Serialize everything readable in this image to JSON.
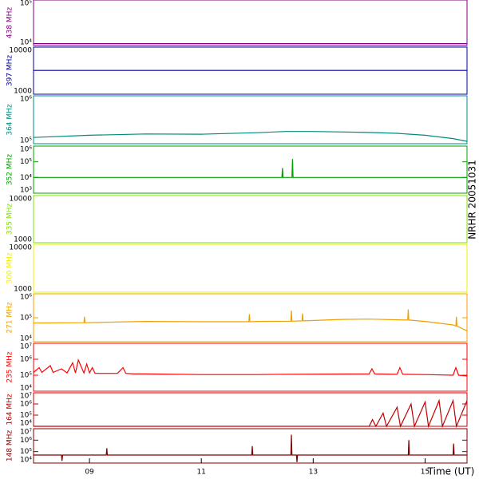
{
  "side_label": "NRHR 20051031",
  "chart_data": [
    {
      "type": "line",
      "ylabel": "438 MHz",
      "color": "#800080",
      "log_y": true,
      "ylim": [
        10000,
        100000
      ],
      "yticks": [
        {
          "value": 10000,
          "label": "10⁴"
        },
        {
          "value": 100000,
          "label": "10⁵"
        }
      ],
      "x": [
        8,
        15.75
      ],
      "values": [
        11000,
        11000
      ]
    },
    {
      "type": "line",
      "ylabel": "397 MHz",
      "color": "#0000a0",
      "log_y": true,
      "ylim": [
        1000,
        10000
      ],
      "yticks": [
        1000,
        10000
      ],
      "x": [
        8,
        15.75
      ],
      "values": [
        3200,
        3200
      ]
    },
    {
      "type": "line",
      "ylabel": "364 MHz",
      "color": "#008b80",
      "log_y": true,
      "ylim": [
        100000,
        1000000
      ],
      "yticks": [
        {
          "value": 100000,
          "label": "10⁵"
        },
        {
          "value": 1000000,
          "label": "10⁶"
        }
      ],
      "x": [
        8,
        9,
        10,
        11,
        12,
        12.5,
        13,
        14,
        14.5,
        15,
        15.5,
        15.75
      ],
      "values": [
        135000,
        150000,
        160000,
        158000,
        170000,
        180000,
        180000,
        172000,
        165000,
        150000,
        128000,
        112000
      ]
    },
    {
      "type": "line",
      "ylabel": "352 MHz",
      "color": "#00a000",
      "log_y": true,
      "ylim": [
        1000,
        1000000
      ],
      "yticks": [
        {
          "value": 1000,
          "label": "10³"
        },
        {
          "value": 10000,
          "label": "10⁴"
        },
        {
          "value": 100000,
          "label": "10⁵"
        },
        {
          "value": 1000000,
          "label": "10⁶"
        }
      ],
      "x": [
        8,
        12.44,
        12.45,
        12.46,
        12.62,
        12.63,
        12.64,
        15.75
      ],
      "values": [
        10000,
        10000,
        40000,
        10000,
        10000,
        150000,
        10000,
        10000
      ]
    },
    {
      "type": "line",
      "ylabel": "335 MHz",
      "color": "#80e000",
      "log_y": true,
      "ylim": [
        1000,
        10000
      ],
      "yticks": [
        1000,
        10000
      ]
    },
    {
      "type": "line",
      "ylabel": "300 MHz",
      "color": "#f0f000",
      "log_y": true,
      "ylim": [
        1000,
        10000
      ],
      "yticks": [
        1000,
        10000
      ]
    },
    {
      "type": "line",
      "ylabel": "271 MHz",
      "color": "#f0a000",
      "log_y": true,
      "ylim": [
        10000,
        1000000
      ],
      "yticks": [
        {
          "value": 10000,
          "label": "10⁴"
        },
        {
          "value": 100000,
          "label": "10⁵"
        },
        {
          "value": 1000000,
          "label": "10⁶"
        }
      ],
      "x": [
        8,
        8.9,
        8.91,
        8.92,
        10,
        11,
        11.85,
        11.86,
        11.87,
        12,
        12.6,
        12.61,
        12.62,
        12.8,
        12.81,
        12.82,
        13.5,
        14,
        14.69,
        14.7,
        14.71,
        15,
        15.5,
        15.55,
        15.56,
        15.57,
        15.75
      ],
      "values": [
        60000,
        62000,
        110000,
        62000,
        70000,
        68000,
        68000,
        140000,
        68000,
        70000,
        72000,
        200000,
        72000,
        74000,
        150000,
        74000,
        85000,
        88000,
        80000,
        220000,
        80000,
        70000,
        50000,
        45000,
        110000,
        45000,
        28000
      ]
    },
    {
      "type": "line",
      "ylabel": "235 MHz",
      "color": "#ff0000",
      "log_y": true,
      "ylim": [
        10000,
        10000000
      ],
      "yticks": [
        {
          "value": 10000,
          "label": "10⁴"
        },
        {
          "value": 100000,
          "label": "10⁵"
        },
        {
          "value": 1000000,
          "label": "10⁶"
        },
        {
          "value": 10000000,
          "label": "10⁷"
        }
      ],
      "x": [
        8,
        8.1,
        8.15,
        8.3,
        8.35,
        8.5,
        8.6,
        8.7,
        8.75,
        8.8,
        8.9,
        8.95,
        9.0,
        9.05,
        9.1,
        9.5,
        9.6,
        9.65,
        9.8,
        10,
        11,
        12,
        12.5,
        14,
        14.05,
        14.1,
        14.5,
        14.55,
        14.6,
        15,
        15.5,
        15.55,
        15.6,
        15.75
      ],
      "values": [
        150000,
        300000,
        150000,
        400000,
        150000,
        250000,
        140000,
        600000,
        140000,
        900000,
        140000,
        500000,
        140000,
        300000,
        130000,
        130000,
        300000,
        130000,
        120000,
        120000,
        110000,
        110000,
        115000,
        120000,
        250000,
        120000,
        115000,
        300000,
        115000,
        110000,
        100000,
        300000,
        100000,
        90000
      ]
    },
    {
      "type": "line",
      "ylabel": "164 MHz",
      "color": "#c00000",
      "log_y": true,
      "ylim": [
        10000,
        10000000
      ],
      "yticks": [
        {
          "value": 10000,
          "label": "10⁴"
        },
        {
          "value": 100000,
          "label": "10⁵"
        },
        {
          "value": 1000000,
          "label": "10⁶"
        },
        {
          "value": 10000000,
          "label": "10⁷"
        }
      ],
      "x": [
        8,
        14.0,
        14.06,
        14.12,
        14.25,
        14.31,
        14.5,
        14.56,
        14.75,
        14.81,
        15.0,
        15.06,
        15.25,
        15.31,
        15.5,
        15.56,
        15.75
      ],
      "values": [
        10000,
        10000,
        40000,
        10000,
        150000,
        10000,
        500000,
        10000,
        1000000,
        10000,
        1500000,
        10000,
        2000000,
        10000,
        2000000,
        10000,
        2000000
      ]
    },
    {
      "type": "line",
      "ylabel": "148 MHz",
      "color": "#800000",
      "log_y": true,
      "ylim": [
        10000,
        10000000
      ],
      "yticks": [
        {
          "value": 10000,
          "label": "10⁴"
        },
        {
          "value": 100000,
          "label": "10⁵"
        },
        {
          "value": 1000000,
          "label": "10⁶"
        },
        {
          "value": 10000000,
          "label": "10⁷"
        }
      ],
      "x": [
        8,
        8.5,
        8.51,
        8.52,
        9.3,
        9.31,
        9.32,
        10.5,
        11.9,
        11.91,
        11.92,
        12.6,
        12.61,
        12.62,
        12.7,
        12.71,
        12.72,
        14.0,
        14.7,
        14.71,
        14.72,
        15.5,
        15.51,
        15.52,
        15.75
      ],
      "values": [
        50000,
        50000,
        15000,
        50000,
        50000,
        200000,
        50000,
        50000,
        50000,
        300000,
        50000,
        50000,
        3000000,
        50000,
        50000,
        12000,
        50000,
        50000,
        50000,
        1000000,
        50000,
        50000,
        500000,
        50000,
        50000
      ],
      "xlim": [
        8.0,
        15.75
      ],
      "xlabel": "Time (UT)",
      "xticks": [
        {
          "value": 9,
          "label": "09"
        },
        11,
        13,
        15
      ]
    }
  ]
}
